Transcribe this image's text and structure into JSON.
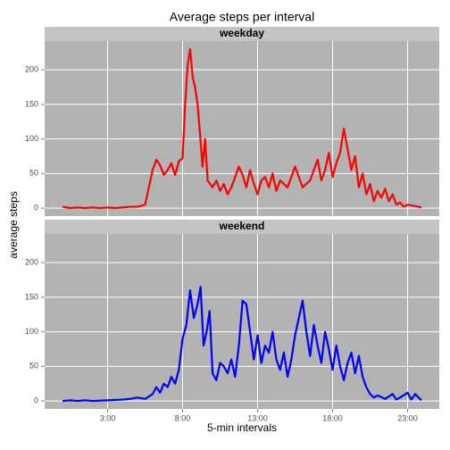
{
  "chart_data": {
    "type": "line",
    "title": "Average steps per interval",
    "xlabel": "5-min intervals",
    "ylabel": "average steps",
    "xlim": [
      -1.196,
      25.112
    ],
    "xticks": [
      {
        "value": 3,
        "label": "3:00"
      },
      {
        "value": 8,
        "label": "8:00"
      },
      {
        "value": 13,
        "label": "13:00"
      },
      {
        "value": 18,
        "label": "18:00"
      },
      {
        "value": 23,
        "label": "23:00"
      }
    ],
    "ylim": [
      -11.5,
      241.5
    ],
    "yticks": [
      0,
      50,
      100,
      150,
      200
    ],
    "grid": true,
    "facets": [
      {
        "name": "weekday",
        "color": "#ff0000",
        "x": [
          0,
          0.5,
          1,
          1.5,
          2,
          2.5,
          3,
          3.5,
          4,
          4.5,
          5,
          5.5,
          5.75,
          6,
          6.25,
          6.5,
          6.75,
          7,
          7.25,
          7.5,
          7.75,
          8,
          8.17,
          8.33,
          8.5,
          8.67,
          8.83,
          9,
          9.17,
          9.33,
          9.5,
          9.67,
          10,
          10.25,
          10.5,
          10.75,
          11,
          11.25,
          11.5,
          11.75,
          12,
          12.25,
          12.5,
          12.75,
          13,
          13.25,
          13.5,
          13.75,
          14,
          14.25,
          14.5,
          14.75,
          15,
          15.5,
          15.75,
          16,
          16.25,
          16.5,
          16.75,
          17,
          17.25,
          17.5,
          17.75,
          18,
          18.25,
          18.5,
          18.75,
          19,
          19.25,
          19.5,
          19.75,
          20,
          20.25,
          20.5,
          20.75,
          21,
          21.25,
          21.5,
          21.75,
          22,
          22.25,
          22.5,
          22.75,
          23,
          23.5,
          23.92
        ],
        "values": [
          2,
          0,
          1,
          0,
          1,
          0,
          1,
          0,
          1,
          2,
          2,
          5,
          30,
          55,
          70,
          62,
          48,
          55,
          65,
          48,
          68,
          72,
          150,
          205,
          230,
          190,
          175,
          150,
          105,
          60,
          100,
          40,
          30,
          40,
          25,
          35,
          20,
          30,
          45,
          60,
          48,
          30,
          55,
          35,
          20,
          40,
          45,
          30,
          50,
          25,
          40,
          35,
          30,
          60,
          45,
          30,
          35,
          40,
          55,
          70,
          40,
          55,
          80,
          45,
          65,
          80,
          115,
          85,
          55,
          75,
          30,
          50,
          20,
          35,
          10,
          25,
          15,
          28,
          10,
          20,
          5,
          8,
          2,
          5,
          3,
          1
        ]
      },
      {
        "name": "weekend",
        "color": "#0000ff",
        "x": [
          0,
          0.5,
          1,
          1.5,
          2,
          3,
          4,
          4.5,
          5,
          5.5,
          6,
          6.25,
          6.5,
          6.75,
          7,
          7.25,
          7.5,
          7.75,
          8,
          8.25,
          8.5,
          8.75,
          9,
          9.2,
          9.4,
          9.6,
          9.8,
          10,
          10.25,
          10.5,
          10.75,
          11,
          11.25,
          11.5,
          11.75,
          12,
          12.25,
          12.5,
          12.75,
          13,
          13.25,
          13.5,
          13.75,
          14,
          14.25,
          14.5,
          14.75,
          15,
          15.25,
          15.5,
          15.75,
          16,
          16.25,
          16.5,
          16.75,
          17,
          17.25,
          17.5,
          17.75,
          18,
          18.25,
          18.5,
          18.75,
          19,
          19.25,
          19.5,
          19.75,
          20,
          20.25,
          20.5,
          20.75,
          21,
          21.5,
          22,
          22.25,
          22.5,
          23,
          23.25,
          23.5,
          23.92
        ],
        "values": [
          0,
          1,
          0,
          1,
          0,
          1,
          2,
          3,
          5,
          3,
          10,
          20,
          12,
          25,
          20,
          35,
          25,
          45,
          90,
          110,
          160,
          120,
          140,
          165,
          80,
          100,
          130,
          40,
          30,
          55,
          50,
          40,
          60,
          35,
          80,
          145,
          140,
          100,
          60,
          95,
          55,
          80,
          70,
          100,
          60,
          45,
          70,
          35,
          60,
          95,
          120,
          145,
          100,
          65,
          110,
          80,
          55,
          100,
          75,
          45,
          80,
          50,
          30,
          55,
          70,
          40,
          65,
          35,
          20,
          10,
          5,
          8,
          3,
          10,
          2,
          5,
          12,
          2,
          10,
          1
        ]
      }
    ]
  }
}
